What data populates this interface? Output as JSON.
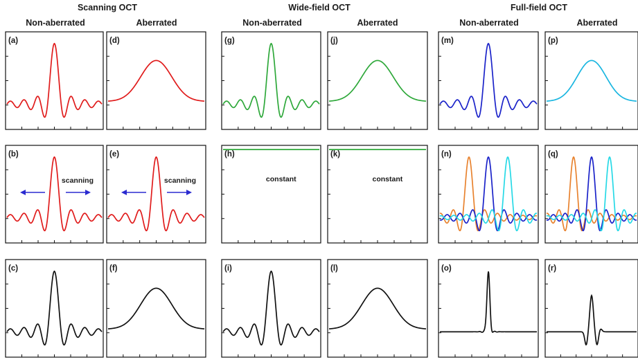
{
  "headers": {
    "groups": [
      "Scanning OCT",
      "Wide-field OCT",
      "Full-field OCT"
    ],
    "columns": [
      "Non-aberrated",
      "Aberrated",
      "Non-aberrated",
      "Aberrated",
      "Non-aberrated",
      "Aberrated"
    ]
  },
  "panels": [
    {
      "label": "(a)",
      "curves": [
        {
          "shape": "sinc",
          "color": "#e01b1b"
        }
      ]
    },
    {
      "label": "(d)",
      "curves": [
        {
          "shape": "gauss",
          "color": "#e01b1b"
        }
      ]
    },
    {
      "label": "(g)",
      "curves": [
        {
          "shape": "sinc",
          "color": "#2ea83a"
        }
      ]
    },
    {
      "label": "(j)",
      "curves": [
        {
          "shape": "gauss",
          "color": "#2ea83a"
        }
      ]
    },
    {
      "label": "(m)",
      "curves": [
        {
          "shape": "sinc",
          "color": "#1a22c9"
        }
      ]
    },
    {
      "label": "(p)",
      "curves": [
        {
          "shape": "gauss",
          "color": "#1ab6e0"
        }
      ]
    },
    {
      "label": "(b)",
      "annotation": "scanning",
      "arrows": true,
      "curves": [
        {
          "shape": "sinc",
          "color": "#e01b1b"
        }
      ]
    },
    {
      "label": "(e)",
      "annotation": "scanning",
      "arrows": true,
      "curves": [
        {
          "shape": "sinc",
          "color": "#e01b1b"
        }
      ]
    },
    {
      "label": "(h)",
      "annotation": "constant",
      "curves": [
        {
          "shape": "flat",
          "color": "#2ea83a"
        }
      ]
    },
    {
      "label": "(k)",
      "annotation": "constant",
      "curves": [
        {
          "shape": "flat",
          "color": "#2ea83a"
        }
      ]
    },
    {
      "label": "(n)",
      "curves": [
        {
          "shape": "sincShift",
          "shift": -0.4,
          "color": "#e8822e"
        },
        {
          "shape": "sincShift",
          "shift": 0.0,
          "color": "#1a22c9"
        },
        {
          "shape": "sincShift",
          "shift": 0.4,
          "color": "#26d9e6"
        }
      ]
    },
    {
      "label": "(q)",
      "curves": [
        {
          "shape": "sincShift",
          "shift": -0.4,
          "color": "#e8822e"
        },
        {
          "shape": "sincShift",
          "shift": 0.0,
          "color": "#1a22c9"
        },
        {
          "shape": "sincShift",
          "shift": 0.4,
          "color": "#26d9e6"
        }
      ]
    },
    {
      "label": "(c)",
      "curves": [
        {
          "shape": "sinc",
          "color": "#111111"
        }
      ]
    },
    {
      "label": "(f)",
      "curves": [
        {
          "shape": "gauss",
          "color": "#111111"
        }
      ]
    },
    {
      "label": "(i)",
      "curves": [
        {
          "shape": "sinc",
          "color": "#111111"
        }
      ]
    },
    {
      "label": "(l)",
      "curves": [
        {
          "shape": "gauss",
          "color": "#111111"
        }
      ]
    },
    {
      "label": "(o)",
      "curves": [
        {
          "shape": "peakNarrow",
          "color": "#111111"
        }
      ]
    },
    {
      "label": "(r)",
      "curves": [
        {
          "shape": "peakSmall",
          "color": "#111111"
        }
      ]
    }
  ],
  "colors": {
    "red": "#e01b1b",
    "green": "#2ea83a",
    "blue": "#1a22c9",
    "cyan": "#1ab6e0",
    "orange": "#e8822e",
    "arrow": "#2a2ad0"
  }
}
